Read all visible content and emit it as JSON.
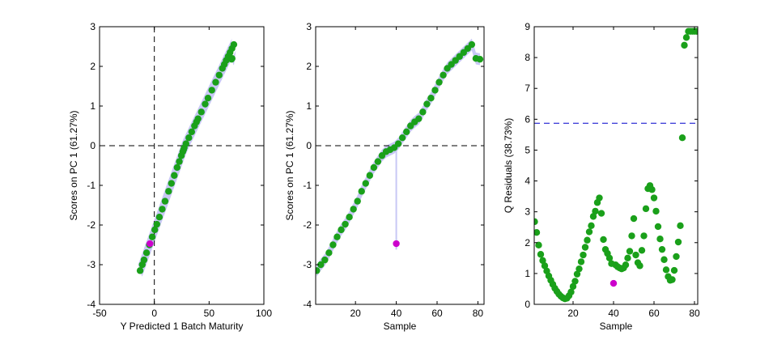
{
  "colors": {
    "normal": "#1aa01a",
    "highlight": "#cc00cc",
    "band": "#c8c8f5",
    "limit": "#0000cc",
    "zero": "#000000"
  },
  "chart_data": [
    {
      "type": "scatter",
      "title": "",
      "xlabel": "Y Predicted 1 Batch Maturity",
      "ylabel": "Scores on PC 1 (61.27%)",
      "xlim": [
        -50,
        100
      ],
      "ylim": [
        -4,
        3
      ],
      "xticks": [
        -50,
        0,
        50,
        100
      ],
      "yticks": [
        -4,
        -3,
        -2,
        -1,
        0,
        1,
        2,
        3
      ],
      "zero_lines": true,
      "band_halfwidth": 0.15,
      "x": [
        -13,
        -11,
        -9.4,
        -7.1,
        -4.5,
        -1.9,
        0.4,
        2.3,
        4.6,
        7.2,
        9.8,
        13,
        15.6,
        18.2,
        20.8,
        22.8,
        24.7,
        26,
        26.7,
        27.3,
        28.9,
        31.5,
        34.1,
        36.7,
        38.5,
        39.9,
        42.9,
        46.4,
        49,
        52.5,
        56,
        59.2,
        62.1,
        63.9,
        65.6,
        67.4,
        69.1,
        70.9,
        72.6,
        71,
        70.5
      ],
      "y": [
        -3.15,
        -3.0,
        -2.88,
        -2.7,
        -2.5,
        -2.3,
        -2.12,
        -1.98,
        -1.8,
        -1.6,
        -1.4,
        -1.15,
        -0.95,
        -0.75,
        -0.55,
        -0.4,
        -0.25,
        -0.15,
        -0.1,
        -0.05,
        0.05,
        0.2,
        0.35,
        0.5,
        0.6,
        0.68,
        0.85,
        1.05,
        1.2,
        1.4,
        1.6,
        1.78,
        1.95,
        2.05,
        2.15,
        2.25,
        2.35,
        2.45,
        2.55,
        2.2,
        2.18
      ],
      "highlight": {
        "x": -4,
        "y": -2.47
      }
    },
    {
      "type": "scatter",
      "title": "",
      "xlabel": "Sample",
      "ylabel": "Scores on PC 1 (61.27%)",
      "xlim": [
        0.5,
        83
      ],
      "ylim": [
        -4,
        3
      ],
      "xticks": [
        20,
        40,
        60,
        80
      ],
      "yticks": [
        -4,
        -3,
        -2,
        -1,
        0,
        1,
        2,
        3
      ],
      "zero_lines": false,
      "hline": 0,
      "band_halfwidth": 0.15,
      "x": [
        1,
        3,
        5,
        7,
        9,
        11,
        13,
        15,
        17,
        19,
        21,
        23,
        25,
        27,
        29,
        31,
        33,
        35,
        37,
        39,
        41,
        43,
        45,
        47,
        49,
        51,
        53,
        55,
        57,
        59,
        61,
        63,
        65,
        67,
        69,
        71,
        73,
        75,
        77,
        79,
        81
      ],
      "y": [
        -3.15,
        -3.0,
        -2.88,
        -2.7,
        -2.5,
        -2.3,
        -2.12,
        -1.98,
        -1.8,
        -1.6,
        -1.4,
        -1.15,
        -0.95,
        -0.75,
        -0.55,
        -0.4,
        -0.25,
        -0.15,
        -0.1,
        -0.05,
        0.05,
        0.2,
        0.35,
        0.5,
        0.6,
        0.68,
        0.85,
        1.05,
        1.2,
        1.4,
        1.6,
        1.78,
        1.95,
        2.05,
        2.15,
        2.25,
        2.35,
        2.45,
        2.55,
        2.2,
        2.18
      ],
      "highlight": {
        "x": 40,
        "y": -2.47
      }
    },
    {
      "type": "scatter",
      "title": "",
      "xlabel": "Sample",
      "ylabel": "Q Residuals (38.73%)",
      "xlim": [
        0.8,
        81.6
      ],
      "ylim": [
        0,
        9
      ],
      "xticks": [
        20,
        40,
        60,
        80
      ],
      "yticks": [
        0,
        1,
        2,
        3,
        4,
        5,
        6,
        7,
        8,
        9
      ],
      "limit_line": 5.87,
      "x": [
        1,
        2,
        3,
        4,
        5,
        6,
        7,
        8,
        9,
        10,
        11,
        12,
        13,
        14,
        15,
        16,
        17,
        18,
        19,
        20,
        21,
        22,
        23,
        24,
        25,
        26,
        27,
        28,
        29,
        30,
        31,
        32,
        33,
        34,
        35,
        36,
        37,
        38,
        39,
        41,
        42,
        43,
        44,
        45,
        46,
        47,
        48,
        49,
        50,
        51,
        52,
        53,
        54,
        55,
        56,
        57,
        58,
        59,
        60,
        61,
        62,
        63,
        64,
        65,
        66,
        67,
        68,
        69,
        70,
        71,
        72,
        73,
        74,
        75,
        76,
        77,
        78,
        79,
        80,
        81
      ],
      "y": [
        2.68,
        2.33,
        1.92,
        1.62,
        1.42,
        1.25,
        1.08,
        0.92,
        0.78,
        0.65,
        0.52,
        0.42,
        0.33,
        0.26,
        0.21,
        0.18,
        0.2,
        0.28,
        0.4,
        0.58,
        0.75,
        0.98,
        1.15,
        1.38,
        1.6,
        1.85,
        2.08,
        2.35,
        2.55,
        2.85,
        3.02,
        3.3,
        3.45,
        2.95,
        2.1,
        1.78,
        1.65,
        1.5,
        1.32,
        1.28,
        1.22,
        1.18,
        1.15,
        1.18,
        1.28,
        1.5,
        1.72,
        2.22,
        2.78,
        1.6,
        1.35,
        1.25,
        1.75,
        2.22,
        3.1,
        3.75,
        3.85,
        3.72,
        3.45,
        3.02,
        2.52,
        2.12,
        1.78,
        1.45,
        1.12,
        0.9,
        0.78,
        0.8,
        1.1,
        1.55,
        2.02,
        2.55,
        5.4,
        8.4,
        8.65,
        8.85,
        8.85,
        8.85,
        8.85,
        8.85
      ],
      "highlight": {
        "x": 40,
        "y": 0.68
      }
    }
  ]
}
